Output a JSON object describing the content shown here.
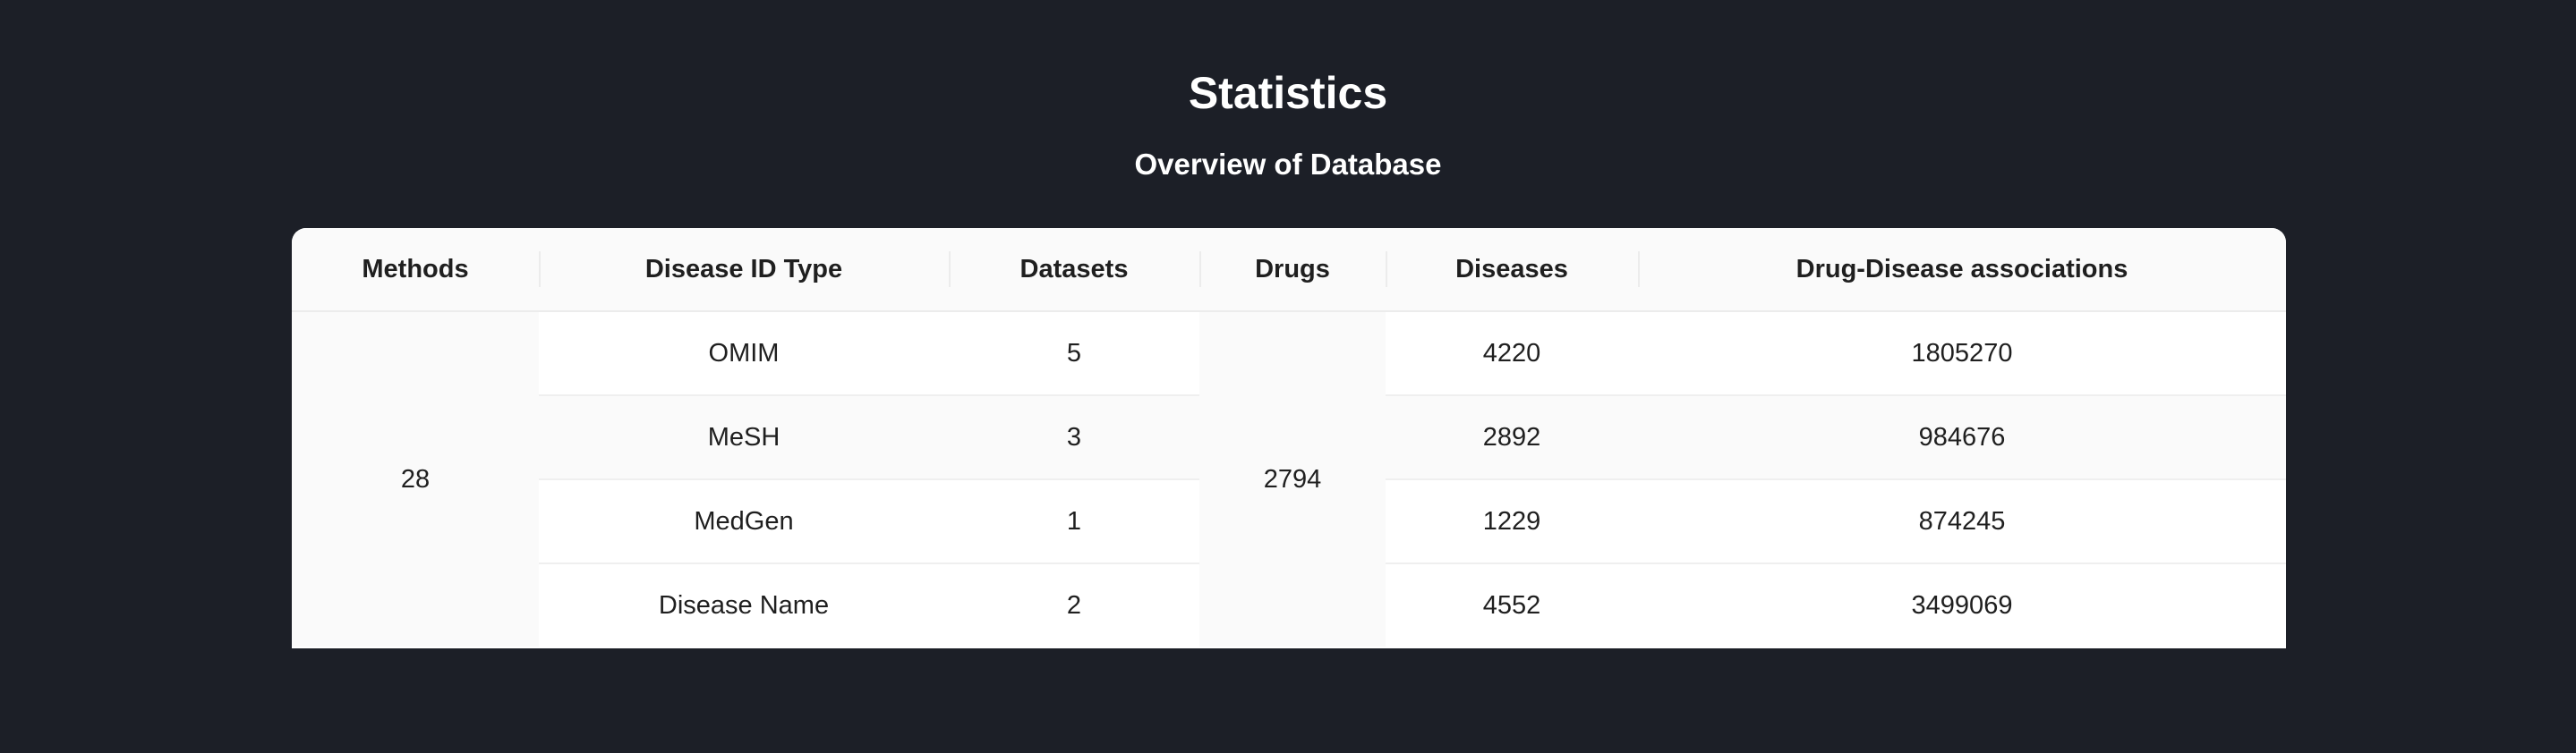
{
  "page": {
    "title": "Statistics",
    "subtitle": "Overview of Database"
  },
  "table": {
    "headers": {
      "methods": "Methods",
      "disease_id_type": "Disease ID Type",
      "datasets": "Datasets",
      "drugs": "Drugs",
      "diseases": "Diseases",
      "associations": "Drug-Disease associations"
    },
    "methods_count": "28",
    "drugs_count": "2794",
    "rows": [
      {
        "disease_id_type": "OMIM",
        "datasets": "5",
        "diseases": "4220",
        "associations": "1805270"
      },
      {
        "disease_id_type": "MeSH",
        "datasets": "3",
        "diseases": "2892",
        "associations": "984676"
      },
      {
        "disease_id_type": "MedGen",
        "datasets": "1",
        "diseases": "1229",
        "associations": "874245"
      },
      {
        "disease_id_type": "Disease Name",
        "datasets": "2",
        "diseases": "4552",
        "associations": "3499069"
      }
    ]
  },
  "colors": {
    "background": "#1c1f27",
    "header_bg": "#fafafa",
    "row_alt_bg": "#fafafa",
    "text": "#1f1f1f"
  }
}
